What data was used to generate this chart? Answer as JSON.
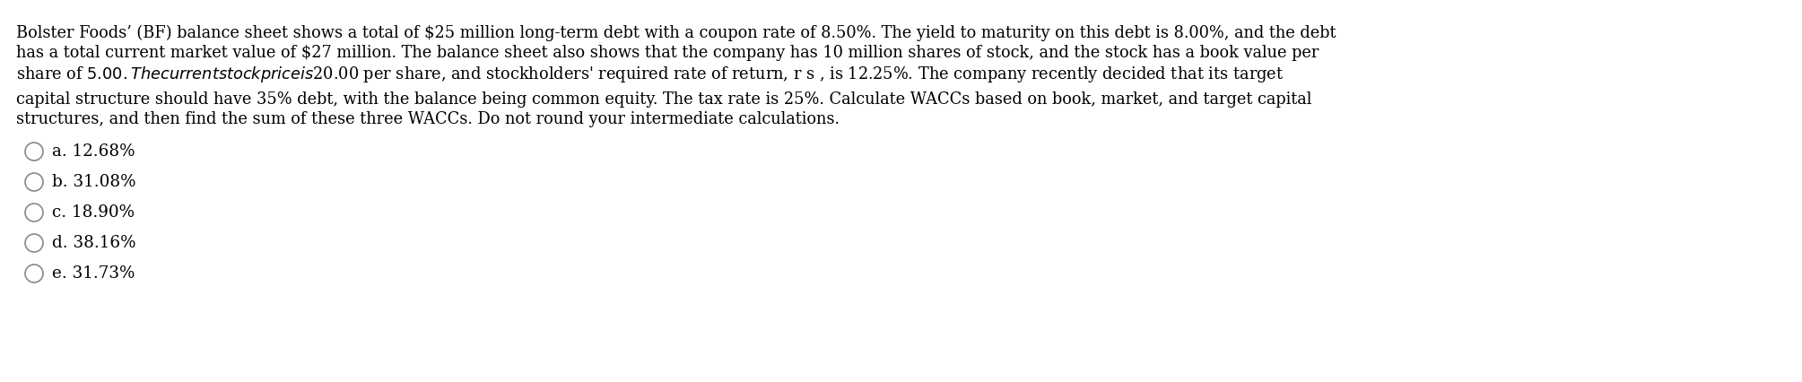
{
  "background_color": "#ffffff",
  "line1": "Bolster Foods’ (BF) balance sheet shows a total of $25 million long-term debt with a coupon rate of 8.50%. The yield to maturity on this debt is 8.00%, and the debt",
  "line2": "has a total current market value of $27 million. The balance sheet also shows that the company has 10 million shares of stock, and the stock has a book value per",
  "line3": "share of $5.00. The current stock price is $20.00 per share, and stockholders' required rate of return, r s , is 12.25%. The company recently decided that its target",
  "line4": "capital structure should have 35% debt, with the balance being common equity. The tax rate is 25%. Calculate WACCs based on book, market, and target capital",
  "line5": "structures, and then find the sum of these three WACCs. Do not round your intermediate calculations.",
  "options": [
    "a. 12.68%",
    "b. 31.08%",
    "c. 18.90%",
    "d. 38.16%",
    "e. 31.73%"
  ],
  "text_color": "#000000",
  "circle_color": "#888888",
  "font_size": 12.8,
  "option_font_size": 13.2,
  "figwidth": 20.09,
  "figheight": 4.26,
  "dpi": 100
}
